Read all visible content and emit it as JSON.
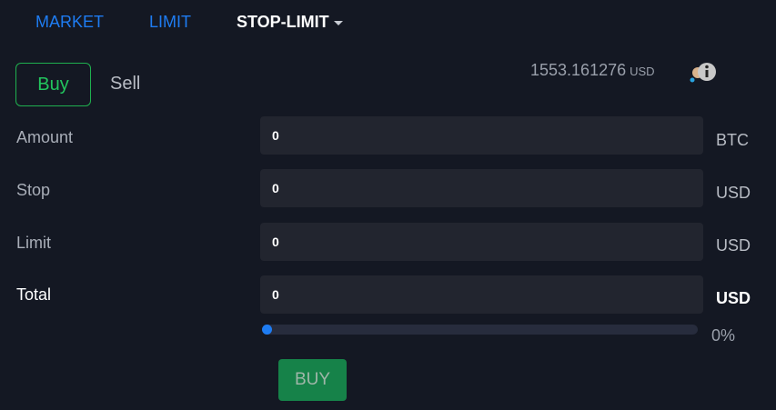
{
  "tabs": [
    {
      "label": "MARKET"
    },
    {
      "label": "LIMIT"
    },
    {
      "label": "STOP-LIMIT"
    }
  ],
  "side": {
    "buy": "Buy",
    "sell": "Sell"
  },
  "balance": {
    "value": "1553.161276",
    "currency": "USD",
    "icon": "info-coins-icon"
  },
  "fields": [
    {
      "label": "Amount",
      "value": "0",
      "unit": "BTC"
    },
    {
      "label": "Stop",
      "value": "0",
      "unit": "USD"
    },
    {
      "label": "Limit",
      "value": "0",
      "unit": "USD"
    },
    {
      "label": "Total",
      "value": "0",
      "unit": "USD"
    }
  ],
  "slider": {
    "percent": 0,
    "label": "0%"
  },
  "submit": "BUY",
  "colors": {
    "accent": "#1e7cf2",
    "buy": "#22c55e",
    "submit_bg": "#168249",
    "background": "#141823"
  }
}
